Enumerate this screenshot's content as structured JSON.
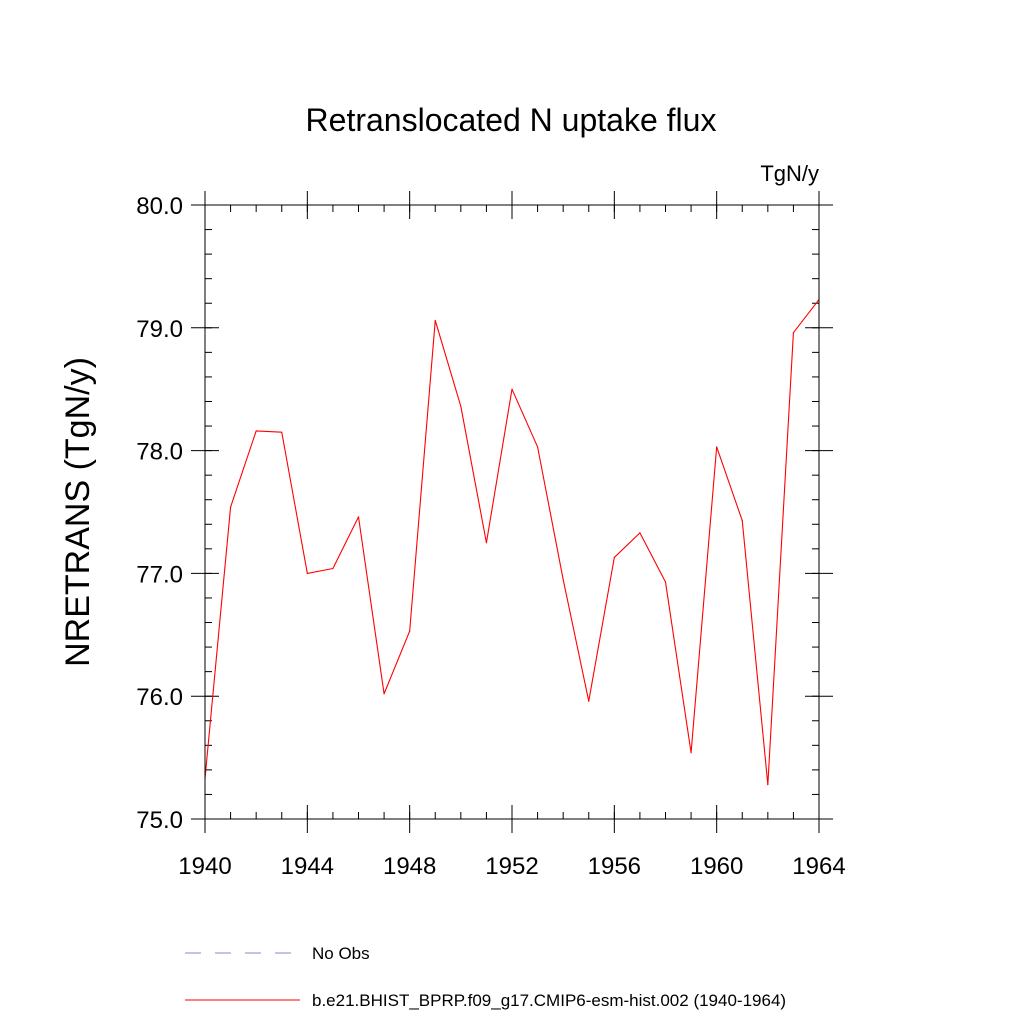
{
  "chart_data": {
    "type": "line",
    "title": "Retranslocated N uptake flux",
    "units": "TgN/y",
    "xlabel": "",
    "ylabel": "NRETRANS  (TgN/y)",
    "xlim": [
      1940,
      1964
    ],
    "ylim": [
      75.0,
      80.0
    ],
    "x_ticks": [
      1940,
      1944,
      1948,
      1952,
      1956,
      1960,
      1964
    ],
    "x_tick_labels": [
      "1940",
      "1944",
      "1948",
      "1952",
      "1956",
      "1960",
      "1964"
    ],
    "y_ticks": [
      75.0,
      76.0,
      77.0,
      78.0,
      79.0,
      80.0
    ],
    "y_tick_labels": [
      "75.0",
      "76.0",
      "77.0",
      "78.0",
      "79.0",
      "80.0"
    ],
    "y_minor_step": 0.2,
    "x_minor_step": 1,
    "legend_position": "bottom",
    "series": [
      {
        "name": "b.e21.BHIST_BPRP.f09_g17.CMIP6-esm-hist.002 (1940-1964)",
        "color": "#ff0000",
        "style": "solid",
        "x": [
          1940,
          1941,
          1942,
          1943,
          1944,
          1945,
          1946,
          1947,
          1948,
          1949,
          1950,
          1951,
          1952,
          1953,
          1954,
          1955,
          1956,
          1957,
          1958,
          1959,
          1960,
          1961,
          1962,
          1963,
          1964
        ],
        "values": [
          75.33,
          77.54,
          78.16,
          78.15,
          77.0,
          77.04,
          77.46,
          76.02,
          76.53,
          79.06,
          78.36,
          77.25,
          78.5,
          78.03,
          76.95,
          75.96,
          77.13,
          77.33,
          76.93,
          75.54,
          78.03,
          77.43,
          75.28,
          78.96,
          79.23
        ]
      },
      {
        "name": "No Obs",
        "color": "#8888cc",
        "style": "dashed",
        "x": [],
        "values": []
      }
    ]
  },
  "legend": {
    "items": [
      {
        "label": "No Obs",
        "color": "#8888cc",
        "style": "dashed"
      },
      {
        "label": "b.e21.BHIST_BPRP.f09_g17.CMIP6-esm-hist.002 (1940-1964)",
        "color": "#ff0000",
        "style": "solid"
      }
    ]
  }
}
